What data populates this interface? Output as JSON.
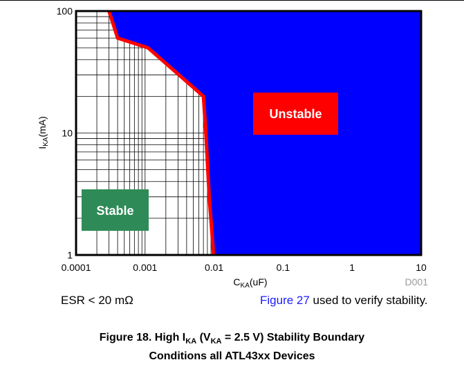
{
  "chart_data": {
    "type": "area",
    "xlabel": {
      "main": "C",
      "sub": "KA",
      "tail": "(uF)"
    },
    "ylabel": {
      "main": "I",
      "sub": "KA",
      "tail": "(mA)"
    },
    "x_scale": "log",
    "y_scale": "log",
    "xlim": [
      0.0001,
      10
    ],
    "ylim": [
      1,
      100
    ],
    "x_ticks": [
      0.0001,
      0.001,
      0.01,
      0.1,
      1,
      10
    ],
    "x_tick_labels": [
      "0.0001",
      "0.001",
      "0.01",
      "0.1",
      "1",
      "10"
    ],
    "y_ticks": [
      1,
      10,
      100
    ],
    "y_tick_labels": [
      "1",
      "10",
      "100"
    ],
    "grid": "minor log grid in stable region only",
    "boundary": {
      "x": [
        0.0003,
        0.0004,
        0.0011,
        0.007,
        0.0076,
        0.0085,
        0.0095,
        0.0098
      ],
      "y": [
        100,
        60,
        50,
        20,
        10,
        3,
        1.3,
        1
      ]
    },
    "regions": [
      {
        "label": "Unstable",
        "color": "#0000ff",
        "badge_color": "#ff0000"
      },
      {
        "label": "Stable",
        "color": "#ffffff",
        "badge_color": "#2e8b57"
      }
    ],
    "boundary_color": "#ff0000",
    "code": "D001"
  },
  "notes": {
    "esr": "ESR < 20 mΩ",
    "figure_link": "Figure 27",
    "verify": " used to verify stability."
  },
  "caption": {
    "line1_a": "Figure 18. High I",
    "line1_sub1": "KA",
    "line1_b": " (V",
    "line1_sub2": "KA",
    "line1_c": " = 2.5 V) Stability Boundary",
    "line2": "Conditions all ATL43xx Devices"
  }
}
